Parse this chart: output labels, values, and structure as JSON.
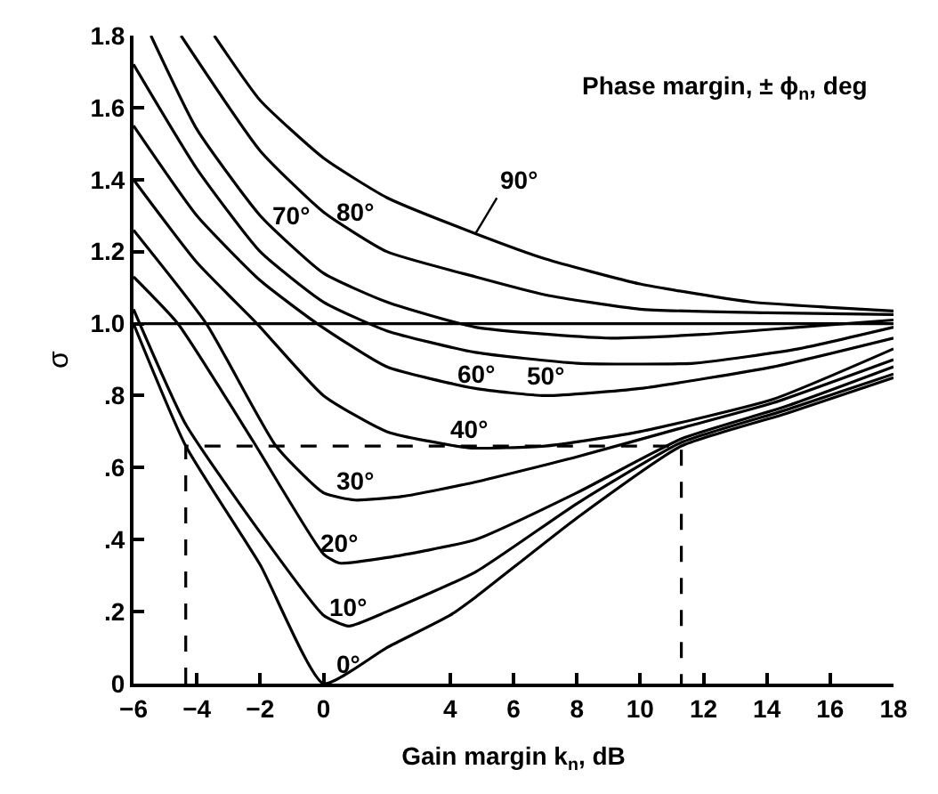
{
  "chart_data": {
    "type": "line",
    "legend_title": "Phase margin, ± ϕ$_{n}$, deg",
    "xlabel": "Gain margin k$_{n}$, dB",
    "ylabel": "σ",
    "xlim": [
      -6,
      18
    ],
    "ylim": [
      0,
      1.8
    ],
    "xticks": [
      {
        "value": -6,
        "label": "−6"
      },
      {
        "value": -4,
        "label": "−4"
      },
      {
        "value": -2,
        "label": "−2"
      },
      0,
      4,
      6,
      8,
      10,
      12,
      14,
      16,
      18
    ],
    "yticks": [
      0,
      {
        "value": 0.2,
        "label": ".2"
      },
      {
        "value": 0.4,
        "label": ".4"
      },
      {
        "value": 0.6,
        "label": ".6"
      },
      {
        "value": 0.8,
        "label": ".8"
      },
      {
        "value": 1.0,
        "label": "1.0"
      },
      1.2,
      1.4,
      1.6,
      1.8
    ],
    "legend": false,
    "marker": "none",
    "ref_lines": [
      {
        "axis": "y",
        "value": 1.0,
        "color": "#000000",
        "line_style": "solid"
      }
    ],
    "series": [
      {
        "name": "0°",
        "color": "#000000",
        "x": [
          -6,
          -4.35,
          -2,
          0,
          2,
          4,
          4.8,
          8,
          11.3,
          14.6,
          18
        ],
        "values": [
          1.0,
          0.66,
          0.33,
          0,
          0.1,
          0.19,
          0.24,
          0.46,
          0.66,
          0.75,
          0.85
        ]
      },
      {
        "name": "10°",
        "color": "#000000",
        "x": [
          -6,
          -4.35,
          -2,
          0,
          0.8,
          2,
          4.8,
          8,
          11.3,
          14.6,
          18
        ],
        "values": [
          1.04,
          0.72,
          0.42,
          0.19,
          0.16,
          0.2,
          0.31,
          0.5,
          0.67,
          0.76,
          0.86
        ]
      },
      {
        "name": "20°",
        "color": "#000000",
        "x": [
          -6,
          -4.6,
          -2.2,
          0,
          0.5,
          2,
          4.8,
          8,
          11.3,
          14.6,
          18
        ],
        "values": [
          1.13,
          1.0,
          0.67,
          0.36,
          0.335,
          0.35,
          0.4,
          0.53,
          0.68,
          0.77,
          0.88
        ]
      },
      {
        "name": "30°",
        "color": "#000000",
        "x": [
          -6,
          -3.7,
          -1.5,
          0,
          1,
          2.5,
          4.8,
          8,
          11.3,
          14.2,
          18
        ],
        "values": [
          1.26,
          1.0,
          0.66,
          0.53,
          0.51,
          0.52,
          0.56,
          0.63,
          0.71,
          0.78,
          0.9
        ]
      },
      {
        "name": "40°",
        "color": "#000000",
        "x": [
          -6,
          -4,
          -2.1,
          0,
          2,
          4.6,
          7,
          10,
          14.2,
          18
        ],
        "values": [
          1.4,
          1.17,
          1.0,
          0.8,
          0.7,
          0.655,
          0.66,
          0.7,
          0.79,
          0.93
        ]
      },
      {
        "name": "50°",
        "color": "#000000",
        "x": [
          -6,
          -4,
          -2,
          -0.2,
          2,
          4.8,
          7,
          10,
          14.2,
          18
        ],
        "values": [
          1.55,
          1.3,
          1.12,
          1.0,
          0.88,
          0.82,
          0.8,
          0.82,
          0.88,
          0.96
        ]
      },
      {
        "name": "60°",
        "color": "#000000",
        "x": [
          -6,
          -4,
          -2,
          0,
          2,
          4.8,
          8,
          11.7,
          15,
          18
        ],
        "values": [
          1.72,
          1.43,
          1.2,
          1.06,
          0.98,
          0.92,
          0.89,
          0.89,
          0.93,
          0.99
        ]
      },
      {
        "name": "70°",
        "color": "#000000",
        "x": [
          -5.45,
          -4,
          -2,
          0,
          2,
          4.8,
          8.9,
          12,
          15,
          18
        ],
        "values": [
          1.8,
          1.54,
          1.3,
          1.14,
          1.06,
          0.99,
          0.96,
          0.97,
          0.99,
          1.01
        ]
      },
      {
        "name": "80°",
        "color": "#000000",
        "x": [
          -4.5,
          -2,
          0,
          2,
          4.8,
          7,
          10,
          14,
          18
        ],
        "values": [
          1.8,
          1.48,
          1.31,
          1.2,
          1.13,
          1.08,
          1.04,
          1.03,
          1.025
        ]
      },
      {
        "name": "90°",
        "color": "#000000",
        "x": [
          -3.45,
          -2,
          0,
          2,
          4.8,
          7,
          10,
          13.5,
          16,
          18
        ],
        "values": [
          1.8,
          1.62,
          1.46,
          1.35,
          1.25,
          1.18,
          1.11,
          1.06,
          1.045,
          1.035
        ]
      },
      {
        "color": "#000000",
        "line_style": "dashed",
        "x": [
          -4.35,
          -4.35,
          11.3,
          11.3
        ],
        "values": [
          0,
          0.66,
          0.66,
          0
        ]
      }
    ]
  }
}
